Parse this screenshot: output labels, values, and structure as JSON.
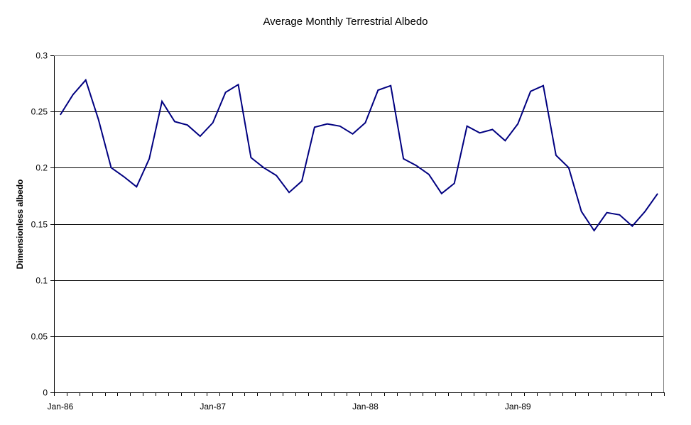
{
  "chart_data": {
    "type": "line",
    "title": "Average Monthly Terrestrial Albedo",
    "xlabel": "",
    "ylabel": "Dimensionless albedo",
    "ylim": [
      0,
      0.3
    ],
    "yticks": [
      "0",
      "0.05",
      "0.1",
      "0.15",
      "0.2",
      "0.25",
      "0.3"
    ],
    "xtick_labels": [
      "Jan-86",
      "Jan-87",
      "Jan-88",
      "Jan-89"
    ],
    "grid": "horizontal",
    "line_color": "#000080",
    "x": [
      "Jan-86",
      "Feb-86",
      "Mar-86",
      "Apr-86",
      "May-86",
      "Jun-86",
      "Jul-86",
      "Aug-86",
      "Sep-86",
      "Oct-86",
      "Nov-86",
      "Dec-86",
      "Jan-87",
      "Feb-87",
      "Mar-87",
      "Apr-87",
      "May-87",
      "Jun-87",
      "Jul-87",
      "Aug-87",
      "Sep-87",
      "Oct-87",
      "Nov-87",
      "Dec-87",
      "Jan-88",
      "Feb-88",
      "Mar-88",
      "Apr-88",
      "May-88",
      "Jun-88",
      "Jul-88",
      "Aug-88",
      "Sep-88",
      "Oct-88",
      "Nov-88",
      "Dec-88",
      "Jan-89",
      "Feb-89",
      "Mar-89",
      "Apr-89",
      "May-89",
      "Jun-89",
      "Jul-89",
      "Aug-89",
      "Sep-89",
      "Oct-89",
      "Nov-89",
      "Dec-89"
    ],
    "values": [
      0.247,
      0.265,
      0.278,
      0.243,
      0.2,
      0.192,
      0.183,
      0.208,
      0.259,
      0.241,
      0.238,
      0.228,
      0.24,
      0.267,
      0.274,
      0.209,
      0.2,
      0.193,
      0.178,
      0.188,
      0.236,
      0.239,
      0.237,
      0.23,
      0.24,
      0.269,
      0.273,
      0.208,
      0.202,
      0.194,
      0.177,
      0.186,
      0.237,
      0.231,
      0.234,
      0.224,
      0.239,
      0.268,
      0.273,
      0.211,
      0.2,
      0.161,
      0.144,
      0.16,
      0.158,
      0.148,
      0.161,
      0.177
    ]
  }
}
